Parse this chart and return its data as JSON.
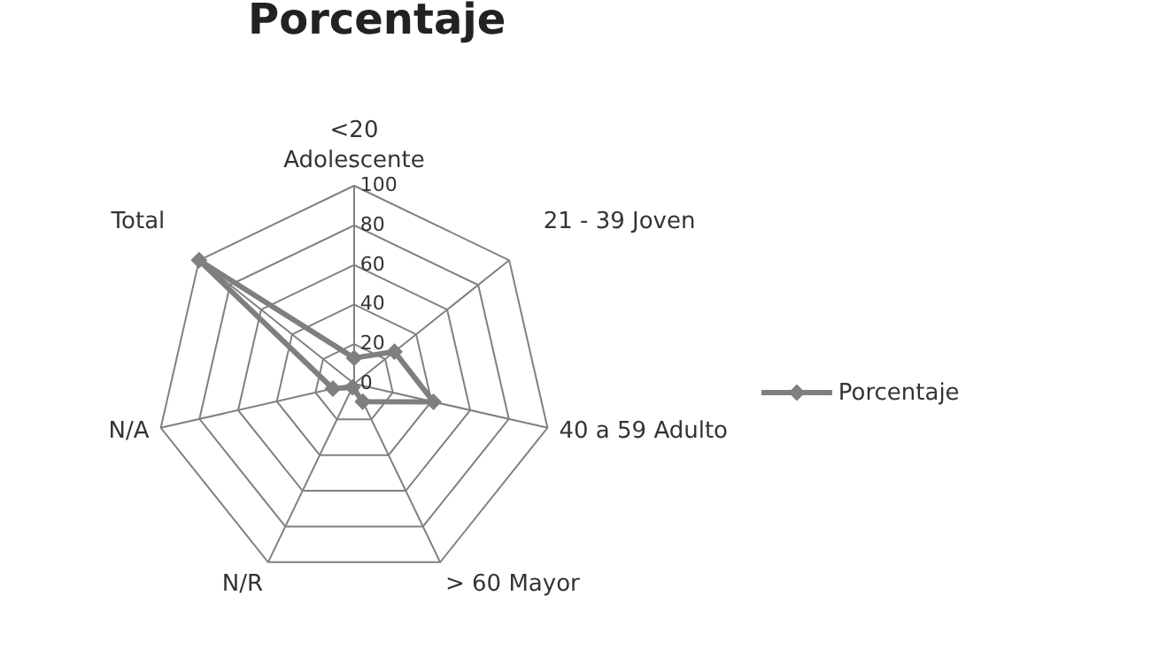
{
  "chart_data": {
    "type": "radar",
    "title": "Porcentaje",
    "categories": [
      "<20\nAdolescente",
      "21 - 39 Joven",
      "40 a 59 Adulto",
      "> 60 Mayor",
      "N/R",
      "N/A",
      "Total"
    ],
    "series": [
      {
        "name": "Porcentaje",
        "color": "#7f7f7f",
        "values": [
          13,
          26,
          41,
          10,
          2,
          11,
          100
        ]
      }
    ],
    "ylim": [
      0,
      100
    ],
    "yticks": [
      0,
      20,
      40,
      60,
      80,
      100
    ],
    "grid": true,
    "legend": "right",
    "marker": "diamond",
    "line_style": "solid"
  }
}
